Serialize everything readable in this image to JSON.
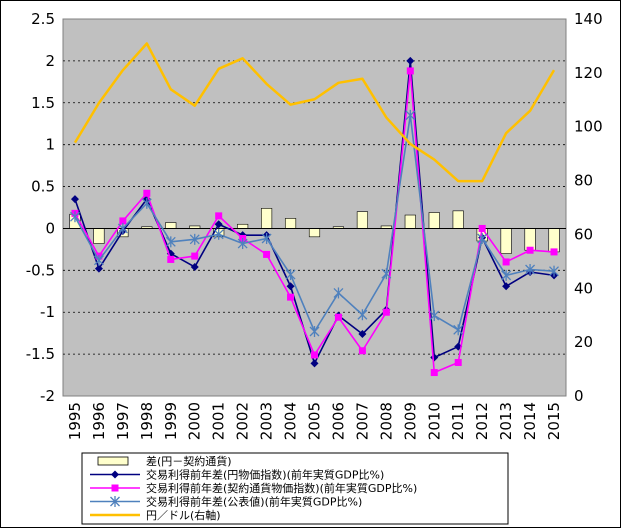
{
  "chart_data": {
    "type": "bar+line",
    "title": "",
    "xlabel": "",
    "ylabel": "",
    "y2label": "",
    "categories": [
      "1995",
      "1996",
      "1997",
      "1998",
      "1999",
      "2000",
      "2001",
      "2002",
      "2003",
      "2004",
      "2005",
      "2006",
      "2007",
      "2008",
      "2009",
      "2010",
      "2011",
      "2012",
      "2013",
      "2014",
      "2015"
    ],
    "ylim": [
      -2,
      2.5
    ],
    "yticks": [
      "2.5",
      "2",
      "1.5",
      "1",
      "0.5",
      "0",
      "-0.5",
      "-1",
      "-1.5",
      "-2"
    ],
    "y2lim": [
      0,
      140
    ],
    "y2ticks": [
      "140",
      "120",
      "100",
      "80",
      "60",
      "40",
      "20",
      "0"
    ],
    "grid": "horizontal-dashed",
    "legend_position": "bottom",
    "plot_background": "#c0c0c0",
    "series": [
      {
        "name": "差(円－契約通貨)",
        "kind": "bar",
        "axis": "left",
        "color": "#ffffcc",
        "values": [
          0.17,
          -0.18,
          -0.1,
          0.02,
          0.07,
          0.03,
          -0.1,
          0.05,
          0.24,
          0.12,
          -0.1,
          0.02,
          0.2,
          0.03,
          0.16,
          0.19,
          0.21,
          -0.15,
          -0.3,
          -0.26,
          -0.28
        ]
      },
      {
        "name": "交易利得前年差(円物価指数)(前年実質GDP比%)",
        "kind": "line",
        "axis": "left",
        "marker": "diamond",
        "color": "#000080",
        "values": [
          0.35,
          -0.48,
          -0.03,
          0.35,
          -0.3,
          -0.46,
          0.05,
          -0.08,
          -0.08,
          -0.69,
          -1.61,
          -1.04,
          -1.26,
          -0.97,
          2.0,
          -1.54,
          -1.41,
          -0.11,
          -0.69,
          -0.52,
          -0.56
        ]
      },
      {
        "name": "交易利得前年差(契約通貨物価指数)(前年実質GDP比%)",
        "kind": "line",
        "axis": "left",
        "marker": "square",
        "color": "#ff00ff",
        "values": [
          0.18,
          -0.33,
          0.09,
          0.42,
          -0.37,
          -0.33,
          0.15,
          -0.12,
          -0.31,
          -0.82,
          -1.51,
          -1.06,
          -1.46,
          -1.0,
          1.88,
          -1.72,
          -1.6,
          0.0,
          -0.4,
          -0.26,
          -0.28
        ]
      },
      {
        "name": "交易利得前年差(公表値)(前年実質GDP比%)",
        "kind": "line",
        "axis": "left",
        "marker": "asterisk",
        "color": "#4f81bd",
        "values": [
          0.14,
          -0.38,
          0.0,
          0.3,
          -0.16,
          -0.13,
          -0.07,
          -0.18,
          -0.12,
          -0.55,
          -1.23,
          -0.77,
          -1.03,
          -0.54,
          1.35,
          -1.04,
          -1.21,
          -0.12,
          -0.56,
          -0.49,
          -0.51
        ]
      },
      {
        "name": "円／ドル(右軸)",
        "kind": "line",
        "axis": "right",
        "marker": "none",
        "color": "#ffc000",
        "values": [
          94.1,
          108.8,
          121.0,
          130.9,
          113.9,
          107.8,
          121.5,
          125.4,
          115.9,
          108.2,
          110.2,
          116.3,
          117.8,
          103.4,
          93.6,
          87.8,
          79.8,
          79.8,
          97.6,
          105.9,
          121.0
        ]
      }
    ]
  }
}
